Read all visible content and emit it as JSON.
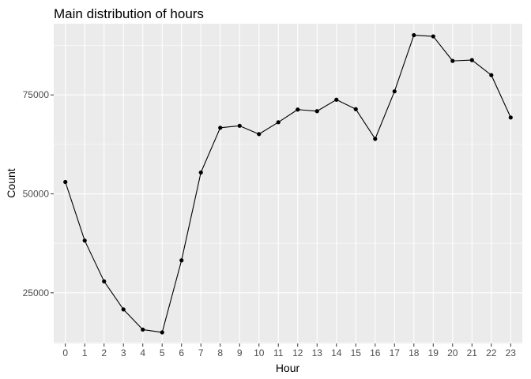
{
  "chart_data": {
    "type": "line",
    "title": "Main distribution of hours",
    "xlabel": "Hour",
    "ylabel": "Count",
    "x": [
      0,
      1,
      2,
      3,
      4,
      5,
      6,
      7,
      8,
      9,
      10,
      11,
      12,
      13,
      14,
      15,
      16,
      17,
      18,
      19,
      20,
      21,
      22,
      23
    ],
    "x_tick_labels": [
      "0",
      "1",
      "2",
      "3",
      "4",
      "5",
      "6",
      "7",
      "8",
      "9",
      "10",
      "11",
      "12",
      "13",
      "14",
      "15",
      "16",
      "17",
      "18",
      "19",
      "20",
      "21",
      "22",
      "23"
    ],
    "series": [
      {
        "values": [
          53000,
          38200,
          27900,
          20800,
          15700,
          15000,
          33200,
          55400,
          66700,
          67200,
          65100,
          68100,
          71300,
          70900,
          73800,
          71400,
          63900,
          75900,
          90100,
          89800,
          83600,
          83800,
          80000,
          69300
        ]
      }
    ],
    "y_ticks": [
      25000,
      50000,
      75000
    ],
    "y_tick_labels": [
      "25000",
      "50000",
      "75000"
    ],
    "ylim": [
      12200,
      93000
    ],
    "grid": true,
    "colors": {
      "panel_background": "#ebebeb",
      "grid_major": "#ffffff",
      "line": "#000000",
      "points": "#000000"
    }
  }
}
